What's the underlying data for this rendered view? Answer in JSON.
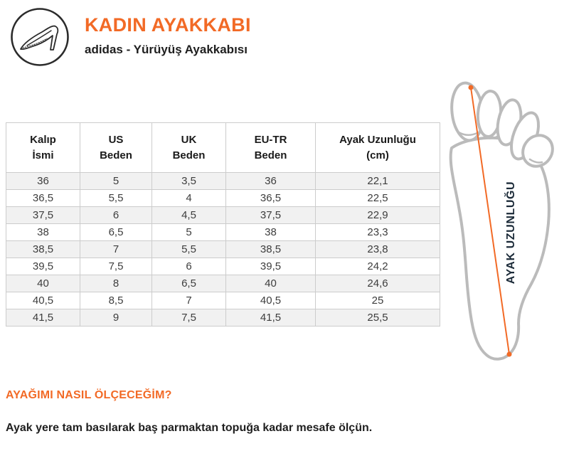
{
  "header": {
    "title": "KADIN AYAKKABI",
    "subtitle": "adidas - Yürüyüş Ayakkabısı"
  },
  "size_table": {
    "columns": [
      "Kalıp\nİsmi",
      "US\nBeden",
      "UK\nBeden",
      "EU-TR\nBeden",
      "Ayak Uzunluğu\n(cm)"
    ],
    "rows": [
      [
        "36",
        "5",
        "3,5",
        "36",
        "22,1"
      ],
      [
        "36,5",
        "5,5",
        "4",
        "36,5",
        "22,5"
      ],
      [
        "37,5",
        "6",
        "4,5",
        "37,5",
        "22,9"
      ],
      [
        "38",
        "6,5",
        "5",
        "38",
        "23,3"
      ],
      [
        "38,5",
        "7",
        "5,5",
        "38,5",
        "23,8"
      ],
      [
        "39,5",
        "7,5",
        "6",
        "39,5",
        "24,2"
      ],
      [
        "40",
        "8",
        "6,5",
        "40",
        "24,6"
      ],
      [
        "40,5",
        "8,5",
        "7",
        "40,5",
        "25"
      ],
      [
        "41,5",
        "9",
        "7,5",
        "41,5",
        "25,5"
      ]
    ]
  },
  "foot_diagram": {
    "label": "AYAK UZUNLUĞU"
  },
  "measure_section": {
    "heading": "AYAĞIMI NASIL ÖLÇECEĞİM?",
    "text": "Ayak yere tam basılarak baş parmaktan topuğa kadar mesafe ölçün."
  },
  "colors": {
    "accent_orange": "#F26A26",
    "foot_outline_gray": "#BBBBBB",
    "diagram_label_navy": "#1C2B39",
    "row_alt_gray": "#F1F1F1",
    "table_border": "#CCCCCC"
  }
}
